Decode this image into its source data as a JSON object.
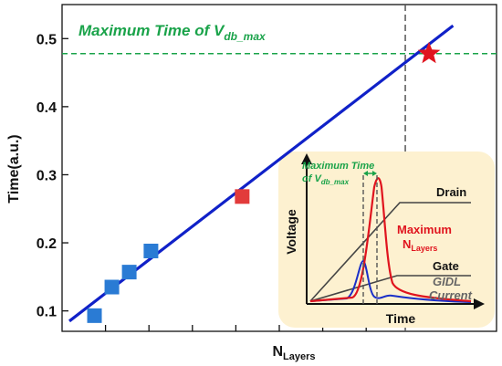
{
  "chart_data": {
    "type": "scatter",
    "title": "",
    "xlabel": "N",
    "xlabel_sub": "Layers",
    "ylabel": "Time(a.u.)",
    "ylim": [
      0.07,
      0.55
    ],
    "xlim": [
      0,
      10
    ],
    "yticks": [
      "0.1",
      "0.2",
      "0.3",
      "0.4",
      "0.5"
    ],
    "ytick_values": [
      0.1,
      0.2,
      0.3,
      0.4,
      0.5
    ],
    "xtick_values": [
      1,
      2,
      3,
      4,
      5,
      6,
      7
    ],
    "grid": false,
    "series": [
      {
        "kind": "measured",
        "color": "#2a7bd4",
        "marker": "square",
        "x": [
          0.2,
          0.6,
          1.0,
          1.5
        ],
        "y": [
          0.093,
          0.135,
          0.157,
          0.188
        ]
      },
      {
        "kind": "highlight",
        "color": "#e23b3b",
        "marker": "square",
        "x": [
          3.6
        ],
        "y": [
          0.268
        ]
      },
      {
        "kind": "max",
        "color": "#e0141e",
        "marker": "star",
        "x": [
          7.9
        ],
        "y": [
          0.478
        ]
      }
    ],
    "fit_line": {
      "color": "#1021c8",
      "x": [
        0,
        9.0
      ],
      "y": [
        0.085,
        0.519
      ]
    },
    "threshold": {
      "value": 0.478,
      "color": "#1aa34a",
      "label_main": "Maximum Time of V",
      "label_sub": "db_max"
    },
    "vline": {
      "x": 7.9,
      "color": "#555555"
    }
  },
  "inset": {
    "background": "#fdf1d0",
    "ylabel": "Voltage",
    "xlabel": "Time",
    "annot_main": "Maximum Time",
    "annot_of": "of V",
    "annot_sub": "db_max",
    "drain_label": "Drain",
    "max_label_main": "Maximum",
    "max_label_n": "N",
    "max_label_sub": "Layers",
    "gate_label": "Gate",
    "gidl_label_1": "GIDL",
    "gidl_label_2": "Current",
    "colors": {
      "red": "#e0141e",
      "blue": "#1a2fc8",
      "green": "#1aa34a",
      "gray": "#555555"
    }
  }
}
